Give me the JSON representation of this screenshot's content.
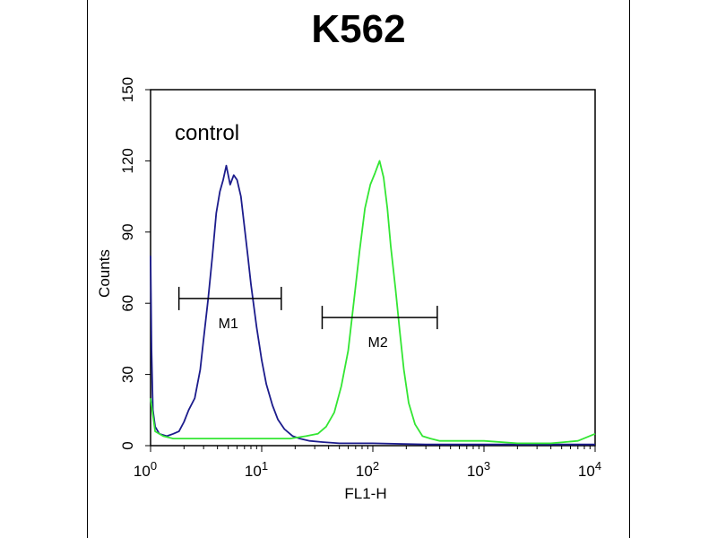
{
  "chart_data": {
    "type": "line",
    "title": "K562",
    "xlabel": "FL1-H",
    "ylabel": "Counts",
    "xscale": "log",
    "xlim": [
      1,
      10000
    ],
    "ylim": [
      0,
      150
    ],
    "grid": false,
    "yticks": [
      "0",
      "30",
      "60",
      "90",
      "120",
      "150"
    ],
    "xticks": [
      {
        "base": "10",
        "exp": "0"
      },
      {
        "base": "10",
        "exp": "1"
      },
      {
        "base": "10",
        "exp": "2"
      },
      {
        "base": "10",
        "exp": "3"
      },
      {
        "base": "10",
        "exp": "4"
      }
    ],
    "annotations": [
      {
        "text": "control"
      }
    ],
    "markers": [
      {
        "label": "M1",
        "x_start": 1.8,
        "x_end": 15,
        "y": 62
      },
      {
        "label": "M2",
        "x_start": 35,
        "x_end": 380,
        "y": 54
      }
    ],
    "series": [
      {
        "color": "#1c1c8c",
        "x": [
          1.0,
          1.02,
          1.05,
          1.1,
          1.2,
          1.4,
          1.6,
          1.8,
          2.0,
          2.2,
          2.5,
          2.8,
          3.0,
          3.3,
          3.6,
          3.9,
          4.2,
          4.5,
          4.8,
          5.2,
          5.6,
          6.0,
          6.5,
          7.0,
          7.5,
          8.0,
          9.0,
          10,
          11,
          12.5,
          14,
          16,
          19,
          22,
          27,
          35,
          50,
          100,
          300,
          1000,
          10000
        ],
        "y": [
          80,
          40,
          15,
          8,
          5,
          4,
          5,
          6,
          10,
          15,
          20,
          32,
          45,
          62,
          80,
          98,
          107,
          112,
          118,
          110,
          114,
          112,
          105,
          92,
          80,
          68,
          50,
          36,
          26,
          17,
          11,
          7,
          4,
          3,
          2,
          1.5,
          1,
          1,
          0.5,
          0.5,
          0.5
        ]
      },
      {
        "color": "#33e633",
        "x": [
          1.0,
          1.1,
          1.3,
          1.6,
          2.0,
          3.0,
          5.0,
          8.0,
          12,
          18,
          25,
          32,
          38,
          45,
          52,
          60,
          68,
          76,
          85,
          95,
          105,
          115,
          125,
          135,
          145,
          160,
          175,
          190,
          210,
          240,
          280,
          330,
          400,
          500,
          700,
          1000,
          2000,
          4000,
          7000,
          10000
        ],
        "y": [
          20,
          6,
          4,
          3,
          3,
          3,
          3,
          3,
          3,
          3,
          4,
          5,
          8,
          14,
          25,
          40,
          62,
          82,
          100,
          110,
          115,
          120,
          113,
          100,
          84,
          66,
          48,
          32,
          18,
          9,
          4,
          3,
          2,
          2,
          2,
          2,
          1,
          1,
          2,
          5
        ]
      }
    ]
  }
}
